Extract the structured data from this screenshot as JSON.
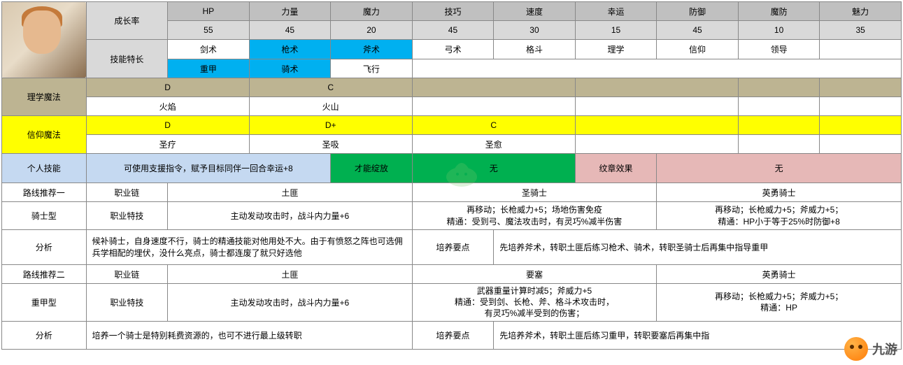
{
  "rowLabels": {
    "growth": "成长率",
    "skillSpec": "技能特长",
    "reasonMagic": "理学魔法",
    "faithMagic": "信仰魔法",
    "personal": "个人技能",
    "route1": "路线推荐一",
    "knightType": "骑士型",
    "analysis1": "分析",
    "route2": "路线推荐二",
    "heavyType": "重甲型",
    "analysis2": "分析",
    "classChain": "职业链",
    "classSkill": "职业特技",
    "trainPoint": "培养要点",
    "talentBloom": "才能绽放",
    "crestEffect": "纹章效果"
  },
  "stats": {
    "headers": [
      "HP",
      "力量",
      "魔力",
      "技巧",
      "速度",
      "幸运",
      "防御",
      "魔防",
      "魅力"
    ],
    "values": [
      "55",
      "45",
      "20",
      "45",
      "30",
      "15",
      "45",
      "10",
      "35"
    ]
  },
  "skillSpec": {
    "row1": [
      {
        "t": "剑术",
        "c": ""
      },
      {
        "t": "枪术",
        "c": "cyan"
      },
      {
        "t": "斧术",
        "c": "cyan"
      },
      {
        "t": "弓术",
        "c": ""
      },
      {
        "t": "格斗",
        "c": ""
      },
      {
        "t": "理学",
        "c": ""
      },
      {
        "t": "信仰",
        "c": ""
      },
      {
        "t": "领导",
        "c": ""
      },
      {
        "t": "",
        "c": ""
      }
    ],
    "row2": [
      {
        "t": "重甲",
        "c": "cyan"
      },
      {
        "t": "骑术",
        "c": "cyan"
      },
      {
        "t": "飞行",
        "c": ""
      }
    ]
  },
  "reason": {
    "ranks": [
      "D",
      "C",
      "",
      "",
      "",
      ""
    ],
    "spells": [
      "火焰",
      "火山",
      "",
      "",
      "",
      ""
    ]
  },
  "faith": {
    "ranks": [
      "D",
      "D+",
      "C",
      "",
      "",
      ""
    ],
    "spells": [
      "圣疗",
      "圣吸",
      "圣愈",
      "",
      "",
      ""
    ]
  },
  "personal": {
    "desc": "可使用支援指令，赋予目标同伴一回合幸运+8",
    "bloomVal": "无",
    "crestVal": "无"
  },
  "route1": {
    "chain": [
      "土匪",
      "圣骑士",
      "英勇骑士"
    ],
    "skill": "主动发动攻击时，战斗内力量+6",
    "mid": "再移动；长枪威力+5；场地伤害免疫\n精通：受到弓、魔法攻击时，有灵巧%减半伤害",
    "right": "再移动；长枪威力+5；斧威力+5；\n精通：HP小于等于25%时防御+8",
    "analysis": "候补骑士，自身速度不行，骑士的精通技能对他用处不大。由于有愤怒之阵也可选佣兵学相配的埋伏，没什么亮点，骑士都连废了就只好选他",
    "train": "先培养斧术，转职土匪后练习枪术、骑术，转职圣骑士后再集中指导重甲"
  },
  "route2": {
    "chain": [
      "土匪",
      "要塞",
      "英勇骑士"
    ],
    "skill": "主动发动攻击时，战斗内力量+6",
    "mid": "武器重量计算时减5；斧威力+5\n精通：受到剑、长枪、斧、格斗术攻击时，\n有灵巧%减半受到的伤害；",
    "right": "再移动；长枪威力+5；斧威力+5；\n精通：HP",
    "analysis": "培养一个骑士是特别耗费资源的，也可不进行最上级转职",
    "train": "先培养斧术，转职土匪后练习重甲，转职要塞后再集中指"
  },
  "brand": "九游",
  "colors": {
    "gray": "#c0c0c0",
    "lightgray": "#d9d9d9",
    "tan": "#bdb492",
    "yellow": "#ffff00",
    "cyan": "#00b0f0",
    "lblue": "#c5d9f1",
    "green": "#00b050",
    "pink": "#e6b8b7"
  }
}
